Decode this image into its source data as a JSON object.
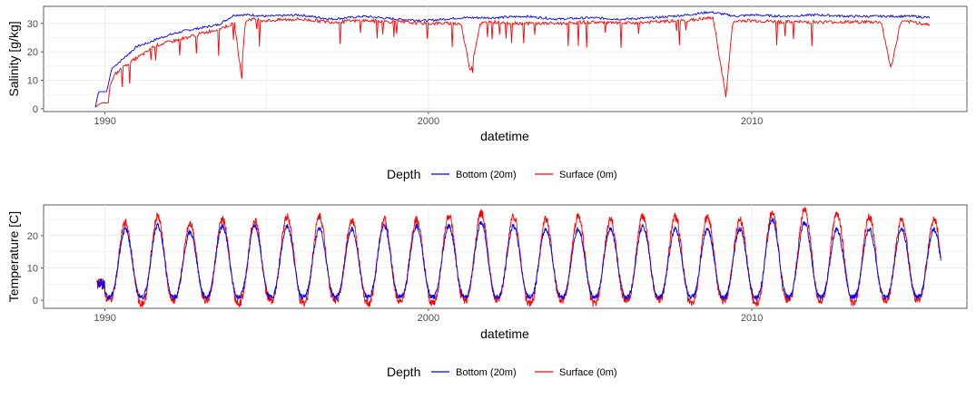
{
  "chart_data": [
    {
      "type": "line",
      "title": "",
      "xlabel": "datetime",
      "ylabel": "Salinity [g/kg]",
      "xlim": [
        1988.1,
        1983.9
      ],
      "xlim_note": "see script",
      "ylim": [
        -1.0,
        36.0
      ],
      "x_ticks": [
        1990,
        2000,
        2010
      ],
      "y_ticks": [
        0,
        10,
        20,
        30
      ],
      "grid": true,
      "legend": {
        "title": "Depth",
        "position": "bottom"
      },
      "series": [
        {
          "name": "Bottom (20m)",
          "color": "#0000ff",
          "x": [
            1989.7,
            1989.8,
            1989.9,
            1990.05,
            1990.15,
            1990.2,
            1990.4,
            1990.6,
            1990.8,
            1991.0,
            1991.3,
            1991.6,
            1992.0,
            1992.5,
            1993.0,
            1993.5,
            1994.0,
            1994.5,
            1995.0,
            1996.0,
            1997.0,
            1998.0,
            1999.0,
            2000.0,
            2001.0,
            2002.0,
            2003.0,
            2004.0,
            2005.0,
            2006.0,
            2007.0,
            2008.0,
            2008.7,
            2009.0,
            2009.5,
            2010.0,
            2011.0,
            2012.0,
            2013.0,
            2014.0,
            2015.0,
            2015.5
          ],
          "y": [
            0.5,
            6,
            6,
            6,
            11,
            14,
            16,
            18,
            20,
            22,
            23,
            24.5,
            26,
            27.5,
            28.5,
            29.5,
            33,
            33,
            32.5,
            33,
            31.5,
            32.5,
            31.5,
            31,
            32,
            32,
            32.5,
            31.5,
            32,
            31.5,
            32,
            33,
            34,
            33.5,
            32.5,
            33,
            32.5,
            33,
            32.5,
            32.5,
            32.5,
            32
          ]
        },
        {
          "name": "Surface (0m)",
          "color": "#ff0000",
          "x": [
            1989.7,
            1989.8,
            1989.9,
            1990.1,
            1990.15,
            1990.3,
            1990.6,
            1991.0,
            1991.3,
            1991.5,
            1992.0,
            1992.5,
            1993.0,
            1993.5,
            1994.0,
            1994.2,
            1994.35,
            1994.5,
            1995.0,
            1996.0,
            1997.0,
            1998.0,
            1999.0,
            2000.0,
            2001.0,
            2001.3,
            2001.6,
            2002.0,
            2003.0,
            2004.0,
            2005.0,
            2006.0,
            2007.0,
            2008.0,
            2008.8,
            2009.2,
            2009.4,
            2009.6,
            2010.0,
            2011.0,
            2012.0,
            2013.0,
            2014.0,
            2014.3,
            2014.6,
            2015.0,
            2015.5
          ],
          "y": [
            0.5,
            1.5,
            2,
            2,
            8,
            12,
            15,
            18,
            20,
            22,
            23.5,
            25,
            26.5,
            28,
            30,
            13,
            31,
            31.5,
            31,
            31.5,
            30.5,
            31,
            30.5,
            30,
            30,
            13,
            30,
            30.5,
            30,
            30,
            30.5,
            30,
            30.5,
            31,
            32,
            4,
            30,
            31,
            31,
            30.5,
            30.5,
            30.5,
            30.5,
            14,
            30.5,
            30.5,
            29.5
          ]
        }
      ]
    },
    {
      "type": "line",
      "title": "",
      "xlabel": "datetime",
      "ylabel": "Temperature [C]",
      "ylim": [
        -2.5,
        29.5
      ],
      "x_ticks": [
        1990,
        2000,
        2010
      ],
      "y_ticks": [
        0,
        10,
        20
      ],
      "grid": true,
      "legend": {
        "title": "Depth",
        "position": "bottom"
      },
      "seasonal_peaks": {
        "years": [
          1990,
          1991,
          1992,
          1993,
          1994,
          1995,
          1996,
          1997,
          1998,
          1999,
          2000,
          2001,
          2002,
          2003,
          2004,
          2005,
          2006,
          2007,
          2008,
          2009,
          2010,
          2011,
          2012,
          2013,
          2014,
          2015
        ],
        "bottom_max": [
          22,
          23,
          21,
          23,
          23,
          23,
          22,
          22,
          23,
          23,
          23,
          24,
          23,
          22,
          22,
          22,
          23,
          22,
          22,
          22,
          25,
          24,
          22,
          22,
          22,
          22
        ],
        "surface_max": [
          24,
          26,
          24,
          25,
          25,
          26,
          26,
          25,
          25,
          25,
          26,
          27,
          26,
          25,
          26,
          25,
          26,
          26,
          26,
          25,
          27,
          28,
          27,
          26,
          25,
          25
        ],
        "bottom_min": [
          1,
          1,
          1,
          1,
          1,
          1,
          1,
          1,
          1,
          1,
          1,
          1,
          1,
          1,
          1,
          1,
          1,
          1,
          1,
          1,
          1,
          1,
          1,
          1,
          1,
          1
        ],
        "surface_min": [
          0,
          -1,
          0,
          0,
          -1,
          0,
          -1,
          0,
          -1,
          0,
          -1,
          0,
          0,
          -1,
          0,
          -1,
          0,
          0,
          -1,
          0,
          -1,
          0,
          0,
          -1,
          0,
          0
        ]
      },
      "series": [
        {
          "name": "Bottom (20m)",
          "color": "#0000ff"
        },
        {
          "name": "Surface (0m)",
          "color": "#ff0000"
        }
      ]
    }
  ]
}
